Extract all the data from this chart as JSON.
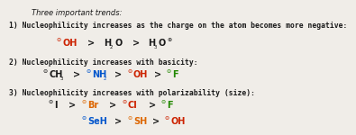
{
  "bg_color": "#f0ede8",
  "colors": {
    "black": "#1a1a1a",
    "red": "#cc2200",
    "blue": "#0055cc",
    "green": "#228800",
    "orange": "#dd6600",
    "purple": "#880088",
    "gray": "#555555"
  },
  "title": "Three important trends:",
  "l1": "1) Nucleophilicity increases as the charge on the atom becomes more negative:",
  "l2": "2) Nucleophilicity increases with basicity:",
  "l3": "3) Nucleophilicity increases with polarizability (size):"
}
